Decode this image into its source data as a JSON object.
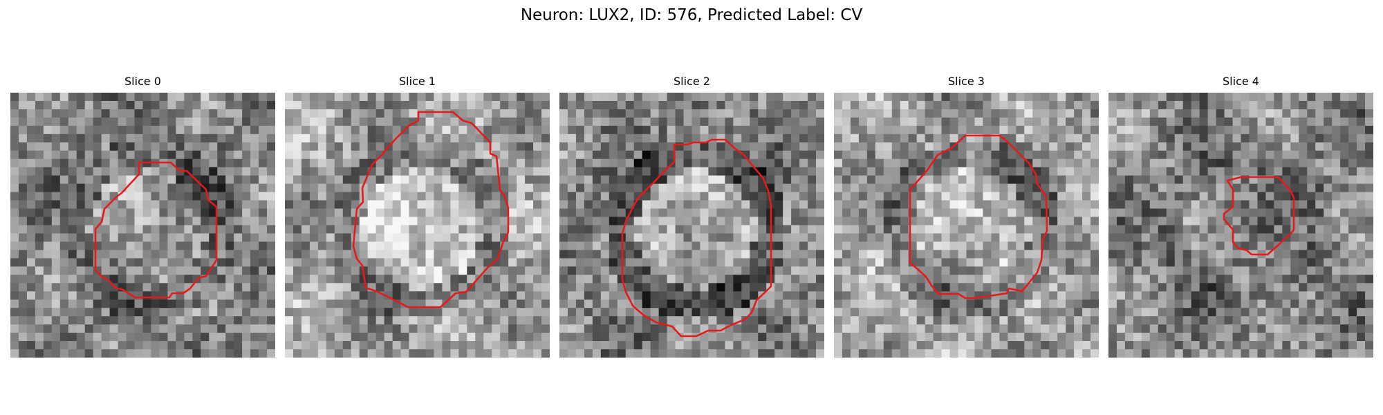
{
  "title": "Neuron: LUX2, ID: 576, Predicted Label: CV",
  "panels": [
    {
      "label": "Slice 0",
      "seed": 11,
      "bg": "mixed",
      "center_brightness": 0.55,
      "ring_darkness": 0.35
    },
    {
      "label": "Slice 1",
      "seed": 23,
      "bg": "light",
      "center_brightness": 0.85,
      "ring_darkness": 0.4
    },
    {
      "label": "Slice 2",
      "seed": 37,
      "bg": "mixed",
      "center_brightness": 0.75,
      "ring_darkness": 0.7
    },
    {
      "label": "Slice 3",
      "seed": 41,
      "bg": "light",
      "center_brightness": 0.7,
      "ring_darkness": 0.45
    },
    {
      "label": "Slice 4",
      "seed": 53,
      "bg": "mixed",
      "center_brightness": 0.4,
      "ring_darkness": 0.25
    }
  ],
  "contour_color": "#e61a1a",
  "colormap": "gray"
}
